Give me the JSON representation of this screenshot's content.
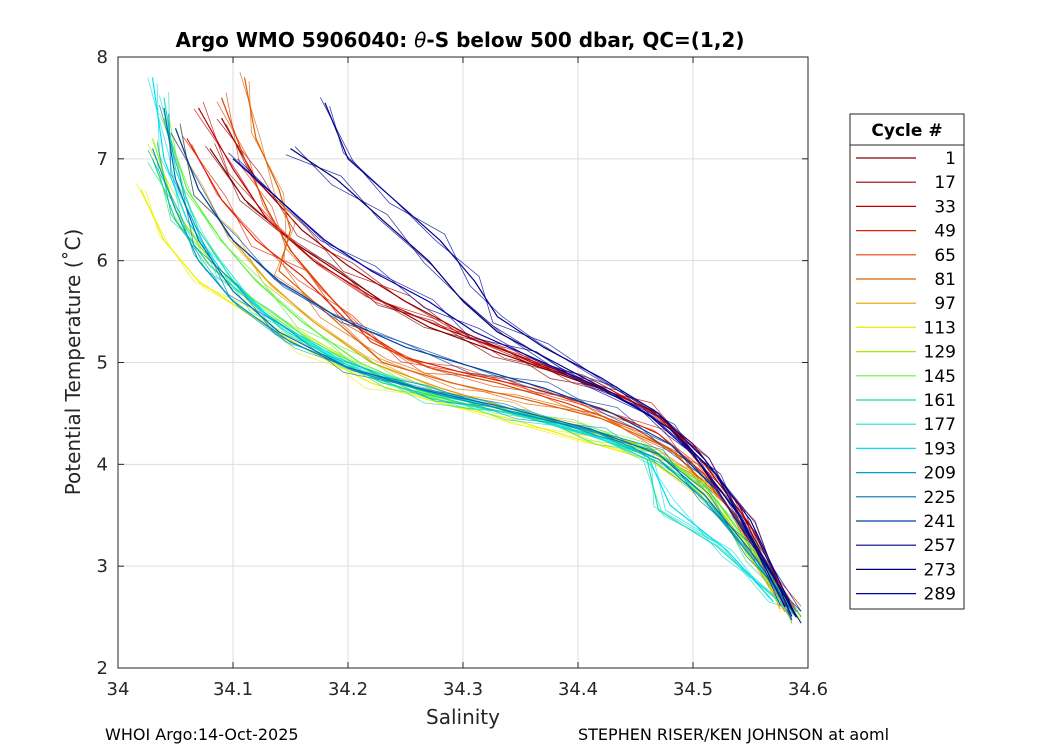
{
  "chart_data": {
    "type": "line",
    "title_prefix": "Argo WMO 5906040: ",
    "title_theta": "θ",
    "title_suffix": "-S below 500 dbar,  QC=(1,2)",
    "xlabel": "Salinity",
    "ylabel": "Potential Temperature (˚C)",
    "xlim": [
      34.0,
      34.6
    ],
    "ylim": [
      2,
      8
    ],
    "xticks": [
      34.0,
      34.1,
      34.2,
      34.3,
      34.4,
      34.5,
      34.6
    ],
    "xtick_labels": [
      "34",
      "34.1",
      "34.2",
      "34.3",
      "34.4",
      "34.5",
      "34.6"
    ],
    "yticks": [
      2,
      3,
      4,
      5,
      6,
      7,
      8
    ],
    "ytick_labels": [
      "2",
      "3",
      "4",
      "5",
      "6",
      "7",
      "8"
    ],
    "grid": true,
    "legend_title": "Cycle #",
    "legend_position": "right",
    "legend": [
      {
        "label": "1",
        "color": "#800000"
      },
      {
        "label": "17",
        "color": "#a00000"
      },
      {
        "label": "33",
        "color": "#c00000"
      },
      {
        "label": "49",
        "color": "#e02000"
      },
      {
        "label": "65",
        "color": "#e04000"
      },
      {
        "label": "81",
        "color": "#e06000"
      },
      {
        "label": "97",
        "color": "#e0a000"
      },
      {
        "label": "113",
        "color": "#f0f000"
      },
      {
        "label": "129",
        "color": "#a0f000"
      },
      {
        "label": "145",
        "color": "#60f040"
      },
      {
        "label": "161",
        "color": "#20e080"
      },
      {
        "label": "177",
        "color": "#20e0c0"
      },
      {
        "label": "193",
        "color": "#00e0f0"
      },
      {
        "label": "209",
        "color": "#00a0c0"
      },
      {
        "label": "225",
        "color": "#0070b0"
      },
      {
        "label": "241",
        "color": "#0040a0"
      },
      {
        "label": "257",
        "color": "#000090"
      },
      {
        "label": "273",
        "color": "#000080"
      },
      {
        "label": "289",
        "color": "#0000a0"
      }
    ],
    "series": [
      {
        "name": "1",
        "color": "#800000",
        "points": [
          [
            34.08,
            7.1
          ],
          [
            34.11,
            6.6
          ],
          [
            34.15,
            6.2
          ],
          [
            34.19,
            5.9
          ],
          [
            34.23,
            5.6
          ],
          [
            34.27,
            5.35
          ],
          [
            34.33,
            5.1
          ],
          [
            34.38,
            4.9
          ],
          [
            34.43,
            4.7
          ],
          [
            34.47,
            4.5
          ],
          [
            34.5,
            4.1
          ],
          [
            34.53,
            3.6
          ],
          [
            34.56,
            3.05
          ],
          [
            34.59,
            2.5
          ]
        ]
      },
      {
        "name": "17",
        "color": "#a00000",
        "points": [
          [
            34.09,
            7.4
          ],
          [
            34.12,
            6.8
          ],
          [
            34.16,
            6.3
          ],
          [
            34.2,
            5.95
          ],
          [
            34.25,
            5.6
          ],
          [
            34.3,
            5.3
          ],
          [
            34.36,
            5.0
          ],
          [
            34.42,
            4.75
          ],
          [
            34.47,
            4.5
          ],
          [
            34.51,
            4.0
          ],
          [
            34.55,
            3.4
          ],
          [
            34.59,
            2.5
          ]
        ]
      },
      {
        "name": "33",
        "color": "#c00000",
        "points": [
          [
            34.07,
            7.5
          ],
          [
            34.1,
            6.9
          ],
          [
            34.13,
            6.4
          ],
          [
            34.17,
            6.0
          ],
          [
            34.22,
            5.65
          ],
          [
            34.28,
            5.35
          ],
          [
            34.34,
            5.1
          ],
          [
            34.4,
            4.85
          ],
          [
            34.46,
            4.55
          ],
          [
            34.5,
            4.2
          ],
          [
            34.54,
            3.6
          ],
          [
            34.58,
            2.6
          ]
        ]
      },
      {
        "name": "49",
        "color": "#e02000",
        "points": [
          [
            34.06,
            7.2
          ],
          [
            34.09,
            6.6
          ],
          [
            34.12,
            6.2
          ],
          [
            34.16,
            5.85
          ],
          [
            34.2,
            5.4
          ],
          [
            34.25,
            5.05
          ],
          [
            34.3,
            4.9
          ],
          [
            34.36,
            4.75
          ],
          [
            34.42,
            4.55
          ],
          [
            34.47,
            4.3
          ],
          [
            34.51,
            3.9
          ],
          [
            34.55,
            3.3
          ],
          [
            34.59,
            2.55
          ]
        ]
      },
      {
        "name": "65",
        "color": "#e04000",
        "points": [
          [
            34.09,
            7.6
          ],
          [
            34.11,
            7.0
          ],
          [
            34.13,
            6.5
          ],
          [
            34.15,
            6.1
          ],
          [
            34.18,
            5.7
          ],
          [
            34.22,
            5.2
          ],
          [
            34.27,
            4.95
          ],
          [
            34.33,
            4.8
          ],
          [
            34.39,
            4.6
          ],
          [
            34.45,
            4.35
          ],
          [
            34.5,
            4.0
          ],
          [
            34.55,
            3.3
          ],
          [
            34.59,
            2.5
          ]
        ]
      },
      {
        "name": "81",
        "color": "#e06000",
        "points": [
          [
            34.11,
            7.8
          ],
          [
            34.12,
            7.2
          ],
          [
            34.14,
            6.7
          ],
          [
            34.15,
            6.3
          ],
          [
            34.14,
            5.9
          ],
          [
            34.18,
            5.5
          ],
          [
            34.23,
            5.0
          ],
          [
            34.29,
            4.8
          ],
          [
            34.35,
            4.65
          ],
          [
            34.42,
            4.45
          ],
          [
            34.48,
            4.15
          ],
          [
            34.53,
            3.6
          ],
          [
            34.58,
            2.6
          ]
        ]
      },
      {
        "name": "97",
        "color": "#e0a000",
        "points": [
          [
            34.05,
            7.3
          ],
          [
            34.07,
            6.7
          ],
          [
            34.1,
            6.2
          ],
          [
            34.13,
            5.8
          ],
          [
            34.17,
            5.4
          ],
          [
            34.22,
            5.0
          ],
          [
            34.28,
            4.75
          ],
          [
            34.34,
            4.55
          ],
          [
            34.4,
            4.35
          ],
          [
            34.45,
            4.2
          ],
          [
            34.5,
            3.9
          ],
          [
            34.54,
            3.3
          ],
          [
            34.58,
            2.55
          ]
        ]
      },
      {
        "name": "113",
        "color": "#f0f000",
        "points": [
          [
            34.02,
            6.7
          ],
          [
            34.04,
            6.2
          ],
          [
            34.07,
            5.8
          ],
          [
            34.11,
            5.5
          ],
          [
            34.16,
            5.15
          ],
          [
            34.22,
            4.8
          ],
          [
            34.28,
            4.6
          ],
          [
            34.34,
            4.45
          ],
          [
            34.4,
            4.25
          ],
          [
            34.46,
            4.05
          ],
          [
            34.51,
            3.7
          ],
          [
            34.55,
            3.1
          ],
          [
            34.58,
            2.6
          ]
        ]
      },
      {
        "name": "129",
        "color": "#a0f000",
        "points": [
          [
            34.03,
            7.2
          ],
          [
            34.05,
            6.5
          ],
          [
            34.08,
            6.0
          ],
          [
            34.12,
            5.6
          ],
          [
            34.17,
            5.2
          ],
          [
            34.23,
            4.85
          ],
          [
            34.29,
            4.62
          ],
          [
            34.35,
            4.48
          ],
          [
            34.41,
            4.3
          ],
          [
            34.47,
            4.1
          ],
          [
            34.51,
            3.75
          ],
          [
            34.55,
            3.15
          ],
          [
            34.59,
            2.5
          ]
        ]
      },
      {
        "name": "145",
        "color": "#60f040",
        "points": [
          [
            34.04,
            7.4
          ],
          [
            34.06,
            6.7
          ],
          [
            34.09,
            6.2
          ],
          [
            34.12,
            5.8
          ],
          [
            34.16,
            5.4
          ],
          [
            34.21,
            5.0
          ],
          [
            34.27,
            4.7
          ],
          [
            34.33,
            4.55
          ],
          [
            34.4,
            4.38
          ],
          [
            34.46,
            4.18
          ],
          [
            34.51,
            3.8
          ],
          [
            34.55,
            3.2
          ],
          [
            34.59,
            2.5
          ]
        ]
      },
      {
        "name": "161",
        "color": "#20e080",
        "points": [
          [
            34.03,
            7.0
          ],
          [
            34.05,
            6.4
          ],
          [
            34.08,
            5.95
          ],
          [
            34.12,
            5.55
          ],
          [
            34.17,
            5.15
          ],
          [
            34.23,
            4.8
          ],
          [
            34.3,
            4.6
          ],
          [
            34.36,
            4.45
          ],
          [
            34.42,
            4.25
          ],
          [
            34.47,
            4.05
          ],
          [
            34.51,
            3.7
          ],
          [
            34.55,
            3.1
          ],
          [
            34.59,
            2.5
          ]
        ]
      },
      {
        "name": "177",
        "color": "#20e0c0",
        "points": [
          [
            34.04,
            7.6
          ],
          [
            34.05,
            6.9
          ],
          [
            34.07,
            6.3
          ],
          [
            34.1,
            5.8
          ],
          [
            34.14,
            5.35
          ],
          [
            34.2,
            4.95
          ],
          [
            34.27,
            4.65
          ],
          [
            34.34,
            4.5
          ],
          [
            34.41,
            4.3
          ],
          [
            34.46,
            4.05
          ],
          [
            34.47,
            3.55
          ],
          [
            34.52,
            3.2
          ],
          [
            34.57,
            2.7
          ],
          [
            34.59,
            2.5
          ]
        ]
      },
      {
        "name": "193",
        "color": "#00e0f0",
        "points": [
          [
            34.03,
            7.8
          ],
          [
            34.04,
            7.0
          ],
          [
            34.06,
            6.4
          ],
          [
            34.09,
            5.9
          ],
          [
            34.13,
            5.45
          ],
          [
            34.19,
            5.05
          ],
          [
            34.26,
            4.75
          ],
          [
            34.33,
            4.55
          ],
          [
            34.4,
            4.35
          ],
          [
            34.46,
            4.1
          ],
          [
            34.48,
            3.6
          ],
          [
            34.53,
            3.15
          ],
          [
            34.57,
            2.65
          ]
        ]
      },
      {
        "name": "209",
        "color": "#00a0c0",
        "points": [
          [
            34.03,
            7.1
          ],
          [
            34.05,
            6.5
          ],
          [
            34.07,
            6.0
          ],
          [
            34.1,
            5.6
          ],
          [
            34.15,
            5.2
          ],
          [
            34.21,
            4.9
          ],
          [
            34.28,
            4.68
          ],
          [
            34.35,
            4.5
          ],
          [
            34.42,
            4.3
          ],
          [
            34.47,
            4.05
          ],
          [
            34.51,
            3.65
          ],
          [
            34.55,
            3.1
          ],
          [
            34.59,
            2.5
          ]
        ]
      },
      {
        "name": "225",
        "color": "#0070b0",
        "points": [
          [
            34.04,
            7.5
          ],
          [
            34.05,
            6.8
          ],
          [
            34.07,
            6.2
          ],
          [
            34.1,
            5.7
          ],
          [
            34.14,
            5.3
          ],
          [
            34.2,
            4.95
          ],
          [
            34.27,
            4.72
          ],
          [
            34.34,
            4.55
          ],
          [
            34.41,
            4.35
          ],
          [
            34.47,
            4.1
          ],
          [
            34.51,
            3.7
          ],
          [
            34.55,
            3.15
          ],
          [
            34.59,
            2.5
          ]
        ]
      },
      {
        "name": "241",
        "color": "#0040a0",
        "points": [
          [
            34.05,
            7.3
          ],
          [
            34.07,
            6.7
          ],
          [
            34.1,
            6.2
          ],
          [
            34.14,
            5.8
          ],
          [
            34.19,
            5.45
          ],
          [
            34.25,
            5.15
          ],
          [
            34.31,
            4.95
          ],
          [
            34.37,
            4.75
          ],
          [
            34.43,
            4.5
          ],
          [
            34.48,
            4.2
          ],
          [
            34.52,
            3.75
          ],
          [
            34.56,
            3.1
          ],
          [
            34.59,
            2.5
          ]
        ]
      },
      {
        "name": "257",
        "color": "#000090",
        "points": [
          [
            34.18,
            7.55
          ],
          [
            34.2,
            7.0
          ],
          [
            34.24,
            6.6
          ],
          [
            34.28,
            6.2
          ],
          [
            34.31,
            5.8
          ],
          [
            34.33,
            5.45
          ],
          [
            34.37,
            5.15
          ],
          [
            34.42,
            4.85
          ],
          [
            34.47,
            4.5
          ],
          [
            34.51,
            4.05
          ],
          [
            34.55,
            3.45
          ],
          [
            34.59,
            2.5
          ]
        ]
      },
      {
        "name": "273",
        "color": "#000080",
        "points": [
          [
            34.15,
            7.1
          ],
          [
            34.19,
            6.8
          ],
          [
            34.23,
            6.4
          ],
          [
            34.27,
            6.0
          ],
          [
            34.3,
            5.6
          ],
          [
            34.33,
            5.3
          ],
          [
            34.38,
            5.0
          ],
          [
            34.43,
            4.7
          ],
          [
            34.48,
            4.35
          ],
          [
            34.52,
            3.9
          ],
          [
            34.55,
            3.3
          ],
          [
            34.59,
            2.5
          ]
        ]
      },
      {
        "name": "289",
        "color": "#0000a0",
        "points": [
          [
            34.1,
            7.0
          ],
          [
            34.14,
            6.6
          ],
          [
            34.18,
            6.2
          ],
          [
            34.22,
            5.9
          ],
          [
            34.27,
            5.6
          ],
          [
            34.31,
            5.3
          ],
          [
            34.36,
            5.05
          ],
          [
            34.41,
            4.8
          ],
          [
            34.46,
            4.5
          ],
          [
            34.5,
            4.1
          ],
          [
            34.54,
            3.5
          ],
          [
            34.58,
            2.6
          ]
        ]
      }
    ]
  },
  "footer": {
    "left": "WHOI Argo:14-Oct-2025",
    "right": "STEPHEN RISER/KEN JOHNSON at aoml"
  }
}
